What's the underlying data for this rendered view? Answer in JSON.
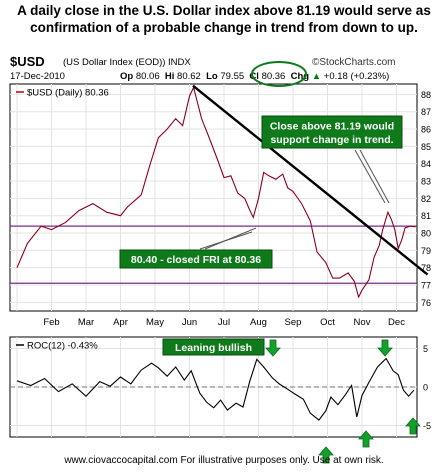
{
  "headline": "A daily close in the U.S. Dollar index above 81.19 would serve as confirmation of a probable change in trend from down to up.",
  "header": {
    "ticker": "$USD",
    "name": "(US Dollar Index (EOD)) INDX",
    "brand": "©StockCharts.com",
    "date": "17-Dec-2010",
    "open_label": "Op",
    "open": "80.06",
    "high_label": "Hi",
    "high": "80.62",
    "low_label": "Lo",
    "low": "79.55",
    "close_label": "Cl",
    "close": "80.36",
    "chg_label": "Chg",
    "chg": "+0.18 (+0.23%)",
    "chg_arrow": "▲"
  },
  "footer": "www.ciovaccocapital.com     For illustrative purposes only.     Use at own risk.",
  "chart_data": [
    {
      "type": "line",
      "panel": "price",
      "legend": "$USD (Daily) 80.36",
      "series": [
        {
          "name": "$USD (Daily)",
          "color": "#b00020"
        }
      ],
      "x_tick_labels": [
        "Feb",
        "Mar",
        "Apr",
        "May",
        "Jun",
        "Jul",
        "Aug",
        "Sep",
        "Oct",
        "Nov",
        "Dec"
      ],
      "x_months": [
        0,
        1,
        2,
        3,
        4,
        5,
        6,
        7,
        8,
        9,
        10,
        11
      ],
      "month_points": [
        [
          0.0,
          78.0
        ],
        [
          0.3,
          79.4
        ],
        [
          0.7,
          80.4
        ],
        [
          1.0,
          80.2
        ],
        [
          1.4,
          80.6
        ],
        [
          1.8,
          81.3
        ],
        [
          2.2,
          81.7
        ],
        [
          2.6,
          81.2
        ],
        [
          3.0,
          81.0
        ],
        [
          3.2,
          81.5
        ],
        [
          3.6,
          82.2
        ],
        [
          3.85,
          83.9
        ],
        [
          4.1,
          85.5
        ],
        [
          4.35,
          86.0
        ],
        [
          4.6,
          86.6
        ],
        [
          4.8,
          86.2
        ],
        [
          5.0,
          87.9
        ],
        [
          5.12,
          88.4
        ],
        [
          5.35,
          86.6
        ],
        [
          5.55,
          85.6
        ],
        [
          5.8,
          84.3
        ],
        [
          6.0,
          83.2
        ],
        [
          6.2,
          83.3
        ],
        [
          6.4,
          82.3
        ],
        [
          6.6,
          82.0
        ],
        [
          6.75,
          81.3
        ],
        [
          6.85,
          80.9
        ],
        [
          7.0,
          82.0
        ],
        [
          7.15,
          83.5
        ],
        [
          7.3,
          83.3
        ],
        [
          7.5,
          83.1
        ],
        [
          7.7,
          83.4
        ],
        [
          7.85,
          82.6
        ],
        [
          8.0,
          82.4
        ],
        [
          8.25,
          81.7
        ],
        [
          8.5,
          80.7
        ],
        [
          8.7,
          78.9
        ],
        [
          8.95,
          78.3
        ],
        [
          9.15,
          77.4
        ],
        [
          9.35,
          77.4
        ],
        [
          9.6,
          77.7
        ],
        [
          9.78,
          77.2
        ],
        [
          9.9,
          76.3
        ],
        [
          10.0,
          76.7
        ],
        [
          10.2,
          77.3
        ],
        [
          10.35,
          78.6
        ],
        [
          10.5,
          79.3
        ],
        [
          10.6,
          80.2
        ],
        [
          10.75,
          81.2
        ],
        [
          10.85,
          80.8
        ],
        [
          10.95,
          80.2
        ],
        [
          11.05,
          79.1
        ],
        [
          11.15,
          79.6
        ],
        [
          11.25,
          80.3
        ],
        [
          11.4,
          80.4
        ],
        [
          11.55,
          80.36
        ]
      ],
      "y_ticks": [
        76,
        77,
        78,
        79,
        80,
        81,
        82,
        83,
        84,
        85,
        86,
        87,
        88
      ],
      "ylim": [
        75.5,
        88.6
      ],
      "horizontal_lines": [
        80.4,
        77.1
      ],
      "trendline": {
        "x": [
          5.1,
          11.9
        ],
        "y": [
          88.5,
          77.6
        ]
      },
      "annotations": [
        {
          "text": "Close above 81.19 would support change in trend.",
          "lines": [
            "Close above 81.19 would",
            "support change in trend."
          ]
        },
        {
          "text": "80.40 - closed FRI at 80.36"
        }
      ]
    },
    {
      "type": "line",
      "panel": "indicator",
      "legend": "ROC(12) -0.43%",
      "series": [
        {
          "name": "ROC(12)",
          "color": "#000000"
        }
      ],
      "month_points": [
        [
          0.0,
          0.8
        ],
        [
          0.4,
          0.2
        ],
        [
          0.8,
          1.1
        ],
        [
          1.2,
          -0.6
        ],
        [
          1.6,
          0.4
        ],
        [
          2.0,
          -1.2
        ],
        [
          2.4,
          0.7
        ],
        [
          2.7,
          0.1
        ],
        [
          3.0,
          1.3
        ],
        [
          3.3,
          0.4
        ],
        [
          3.6,
          2.2
        ],
        [
          3.9,
          3.1
        ],
        [
          4.1,
          2.5
        ],
        [
          4.35,
          1.4
        ],
        [
          4.6,
          2.6
        ],
        [
          4.85,
          0.9
        ],
        [
          5.05,
          2.1
        ],
        [
          5.3,
          -0.8
        ],
        [
          5.5,
          -2.0
        ],
        [
          5.7,
          -2.7
        ],
        [
          5.9,
          -1.7
        ],
        [
          6.1,
          -3.0
        ],
        [
          6.35,
          -2.1
        ],
        [
          6.55,
          -2.6
        ],
        [
          6.75,
          0.8
        ],
        [
          6.95,
          3.6
        ],
        [
          7.15,
          2.6
        ],
        [
          7.4,
          1.2
        ],
        [
          7.6,
          0.4
        ],
        [
          7.85,
          -0.3
        ],
        [
          8.05,
          -0.9
        ],
        [
          8.3,
          -1.6
        ],
        [
          8.5,
          -3.4
        ],
        [
          8.75,
          -4.3
        ],
        [
          8.95,
          -3.1
        ],
        [
          9.1,
          -1.3
        ],
        [
          9.3,
          -2.3
        ],
        [
          9.5,
          -1.1
        ],
        [
          9.7,
          0.2
        ],
        [
          9.85,
          -3.9
        ],
        [
          10.0,
          -1.1
        ],
        [
          10.2,
          0.6
        ],
        [
          10.45,
          2.6
        ],
        [
          10.7,
          3.7
        ],
        [
          10.9,
          2.1
        ],
        [
          11.05,
          1.6
        ],
        [
          11.2,
          -0.4
        ],
        [
          11.35,
          -1.2
        ],
        [
          11.5,
          -0.43
        ]
      ],
      "y_ticks": [
        5,
        0,
        -5
      ],
      "ylim": [
        -6.5,
        6.5
      ],
      "zero_line": 0,
      "annotations": [
        {
          "text": "Leaning bullish"
        }
      ]
    }
  ]
}
